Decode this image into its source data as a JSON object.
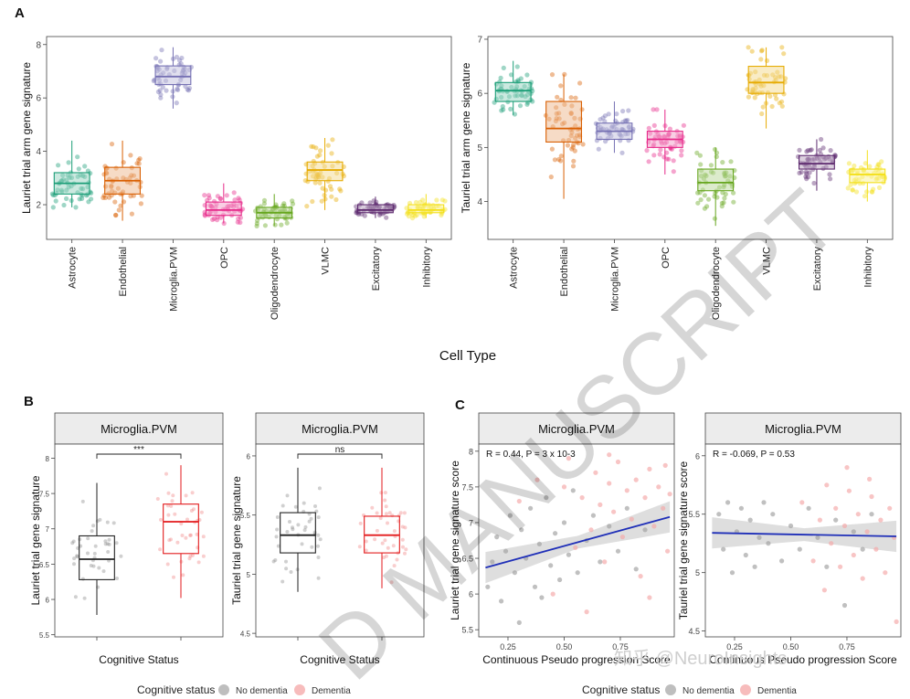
{
  "figure": {
    "panel_letters": [
      "A",
      "B",
      "C"
    ],
    "panel_a_xlabel": "Cell Type",
    "legend": {
      "title": "Cognitive status",
      "items": [
        {
          "label": "No dementia",
          "color": "#a8a8a8"
        },
        {
          "label": "Dementia",
          "color": "#f4a6a6"
        }
      ]
    },
    "watermarks": {
      "diagonal": "D MANUSCRIPT",
      "brand": "知乎 @NeuroInsights"
    }
  },
  "chart_data": [
    {
      "id": "A-left",
      "type": "box",
      "ylabel": "Lauriet trial arm gene signature",
      "ylim": [
        0.7,
        8.3
      ],
      "yticks": [
        2,
        4,
        6,
        8
      ],
      "categories": [
        "Astrocyte",
        "Endothelial",
        "Microglia.PVM",
        "OPC",
        "Oligodendrocyte",
        "VLMC",
        "Excitatory",
        "Inhibitory"
      ],
      "colors": [
        "#1b9e77",
        "#d95f02",
        "#7570b3",
        "#e7298a",
        "#66a61e",
        "#e6ab02",
        "#5e2a6f",
        "#f4e01a"
      ],
      "boxes": [
        {
          "q1": 2.4,
          "median": 2.8,
          "q3": 3.2,
          "min": 1.9,
          "max": 4.4
        },
        {
          "q1": 2.4,
          "median": 2.9,
          "q3": 3.4,
          "min": 1.4,
          "max": 4.4
        },
        {
          "q1": 6.5,
          "median": 6.8,
          "q3": 7.2,
          "min": 5.6,
          "max": 7.9
        },
        {
          "q1": 1.6,
          "median": 1.8,
          "q3": 2.1,
          "min": 1.3,
          "max": 2.8
        },
        {
          "q1": 1.5,
          "median": 1.7,
          "q3": 1.9,
          "min": 1.2,
          "max": 2.4
        },
        {
          "q1": 2.9,
          "median": 3.3,
          "q3": 3.6,
          "min": 1.8,
          "max": 4.5
        },
        {
          "q1": 1.7,
          "median": 1.8,
          "q3": 2.0,
          "min": 1.5,
          "max": 2.3
        },
        {
          "q1": 1.7,
          "median": 1.8,
          "q3": 2.0,
          "min": 1.5,
          "max": 2.4
        }
      ]
    },
    {
      "id": "A-right",
      "type": "box",
      "ylabel": "Tauriel trial arm gene signature",
      "ylim": [
        3.3,
        7.05
      ],
      "yticks": [
        4,
        5,
        6,
        7
      ],
      "categories": [
        "Astrocyte",
        "Endothelial",
        "Microglia.PVM",
        "OPC",
        "Oligodendrocyte",
        "VLMC",
        "Excitatory",
        "Inhibitory"
      ],
      "colors": [
        "#1b9e77",
        "#d95f02",
        "#7570b3",
        "#e7298a",
        "#66a61e",
        "#e6ab02",
        "#5e2a6f",
        "#f4e01a"
      ],
      "boxes": [
        {
          "q1": 5.85,
          "median": 6.05,
          "q3": 6.2,
          "min": 5.6,
          "max": 6.6
        },
        {
          "q1": 5.1,
          "median": 5.35,
          "q3": 5.85,
          "min": 4.05,
          "max": 6.35
        },
        {
          "q1": 5.15,
          "median": 5.3,
          "q3": 5.45,
          "min": 4.9,
          "max": 5.85
        },
        {
          "q1": 5.0,
          "median": 5.15,
          "q3": 5.3,
          "min": 4.5,
          "max": 5.7
        },
        {
          "q1": 4.2,
          "median": 4.35,
          "q3": 4.6,
          "min": 3.55,
          "max": 5.0
        },
        {
          "q1": 6.0,
          "median": 6.2,
          "q3": 6.5,
          "min": 5.35,
          "max": 6.85
        },
        {
          "q1": 4.6,
          "median": 4.7,
          "q3": 4.85,
          "min": 4.2,
          "max": 5.15
        },
        {
          "q1": 4.35,
          "median": 4.5,
          "q3": 4.6,
          "min": 4.0,
          "max": 4.95
        }
      ]
    },
    {
      "id": "B-left",
      "type": "box",
      "facet": "Microglia.PVM",
      "xlabel": "Cognitive Status",
      "ylabel": "Lauriet trial gene signature",
      "ylim": [
        5.47,
        8.2
      ],
      "yticks": [
        5.5,
        6.0,
        6.5,
        7.0,
        7.5,
        8.0
      ],
      "significance": "***",
      "categories": [
        "No dementia",
        "Dementia"
      ],
      "colors": [
        "#222222",
        "#e31a1c"
      ],
      "boxes": [
        {
          "q1": 6.28,
          "median": 6.57,
          "q3": 6.9,
          "min": 5.78,
          "max": 7.65
        },
        {
          "q1": 6.65,
          "median": 7.1,
          "q3": 7.35,
          "min": 6.02,
          "max": 7.9
        }
      ]
    },
    {
      "id": "B-right",
      "type": "box",
      "facet": "Microglia.PVM",
      "xlabel": "Cognitive Status",
      "ylabel": "Tauriel trial gene signature",
      "ylim": [
        4.47,
        6.1
      ],
      "yticks": [
        4.5,
        5.0,
        5.5,
        6.0
      ],
      "significance": "ns",
      "categories": [
        "No dementia",
        "Dementia"
      ],
      "colors": [
        "#222222",
        "#e31a1c"
      ],
      "boxes": [
        {
          "q1": 5.18,
          "median": 5.33,
          "q3": 5.52,
          "min": 4.85,
          "max": 5.9
        },
        {
          "q1": 5.18,
          "median": 5.33,
          "q3": 5.49,
          "min": 4.88,
          "max": 5.9
        }
      ]
    },
    {
      "id": "C-left",
      "type": "scatter",
      "facet": "Microglia.PVM",
      "xlabel": "Continuous Pseudo progression Score",
      "ylabel": "Lauriet trial gene signature score",
      "xlim": [
        0.12,
        0.99
      ],
      "ylim": [
        5.4,
        8.1
      ],
      "xticks": [
        0.25,
        0.5,
        0.75
      ],
      "yticks": [
        5.5,
        6.0,
        6.5,
        7.0,
        7.5,
        8.0
      ],
      "annotation": "R = 0.44, P = 3 x 10-3",
      "fit": {
        "x": [
          0.15,
          0.97
        ],
        "y": [
          6.37,
          7.08
        ]
      },
      "points": [
        [
          0.16,
          6.1,
          0
        ],
        [
          0.18,
          6.45,
          0
        ],
        [
          0.2,
          6.8,
          0
        ],
        [
          0.22,
          5.9,
          0
        ],
        [
          0.24,
          6.6,
          0
        ],
        [
          0.26,
          7.1,
          0
        ],
        [
          0.28,
          6.3,
          0
        ],
        [
          0.3,
          5.6,
          0
        ],
        [
          0.31,
          6.9,
          0
        ],
        [
          0.33,
          6.5,
          0
        ],
        [
          0.35,
          7.2,
          0
        ],
        [
          0.37,
          6.1,
          0
        ],
        [
          0.39,
          6.7,
          0
        ],
        [
          0.4,
          5.95,
          0
        ],
        [
          0.42,
          7.35,
          0
        ],
        [
          0.44,
          6.4,
          0
        ],
        [
          0.46,
          6.85,
          0
        ],
        [
          0.48,
          6.2,
          0
        ],
        [
          0.5,
          7.0,
          0
        ],
        [
          0.52,
          6.55,
          0
        ],
        [
          0.54,
          7.45,
          0
        ],
        [
          0.56,
          6.3,
          0
        ],
        [
          0.6,
          6.75,
          0
        ],
        [
          0.63,
          7.1,
          0
        ],
        [
          0.66,
          6.45,
          0
        ],
        [
          0.7,
          6.95,
          0
        ],
        [
          0.74,
          6.6,
          0
        ],
        [
          0.78,
          7.2,
          0
        ],
        [
          0.82,
          6.35,
          0
        ],
        [
          0.86,
          6.9,
          0
        ],
        [
          0.3,
          7.3,
          1
        ],
        [
          0.38,
          7.6,
          1
        ],
        [
          0.45,
          6.0,
          1
        ],
        [
          0.5,
          7.5,
          1
        ],
        [
          0.55,
          6.65,
          1
        ],
        [
          0.58,
          7.35,
          1
        ],
        [
          0.62,
          6.9,
          1
        ],
        [
          0.64,
          7.7,
          1
        ],
        [
          0.66,
          7.25,
          1
        ],
        [
          0.68,
          6.45,
          1
        ],
        [
          0.7,
          7.55,
          1
        ],
        [
          0.72,
          7.15,
          1
        ],
        [
          0.74,
          7.85,
          1
        ],
        [
          0.76,
          6.8,
          1
        ],
        [
          0.78,
          7.45,
          1
        ],
        [
          0.8,
          7.05,
          1
        ],
        [
          0.82,
          7.6,
          1
        ],
        [
          0.84,
          6.25,
          1
        ],
        [
          0.86,
          7.35,
          1
        ],
        [
          0.88,
          7.75,
          1
        ],
        [
          0.9,
          6.95,
          1
        ],
        [
          0.92,
          7.5,
          1
        ],
        [
          0.94,
          7.2,
          1
        ],
        [
          0.95,
          7.8,
          1
        ],
        [
          0.96,
          6.6,
          1
        ],
        [
          0.97,
          7.4,
          1
        ],
        [
          0.6,
          5.75,
          1
        ],
        [
          0.88,
          5.95,
          1
        ],
        [
          0.52,
          7.9,
          1
        ],
        [
          0.7,
          7.95,
          1
        ]
      ]
    },
    {
      "id": "C-right",
      "type": "scatter",
      "facet": "Microglia.PVM",
      "xlabel": "Continuous Pseudo progression Score",
      "ylabel": "Tauriel trial gene signature score",
      "xlim": [
        0.12,
        0.99
      ],
      "ylim": [
        4.45,
        6.1
      ],
      "xticks": [
        0.25,
        0.5,
        0.75
      ],
      "yticks": [
        4.5,
        5.0,
        5.5,
        6.0
      ],
      "annotation": "R = -0.069, P = 0.53",
      "fit": {
        "x": [
          0.15,
          0.97
        ],
        "y": [
          5.34,
          5.31
        ]
      },
      "points": [
        [
          0.18,
          5.5,
          0
        ],
        [
          0.2,
          5.2,
          0
        ],
        [
          0.22,
          5.6,
          0
        ],
        [
          0.24,
          5.0,
          0
        ],
        [
          0.26,
          5.35,
          0
        ],
        [
          0.28,
          5.55,
          0
        ],
        [
          0.3,
          5.15,
          0
        ],
        [
          0.32,
          5.45,
          0
        ],
        [
          0.34,
          5.05,
          0
        ],
        [
          0.36,
          5.3,
          0
        ],
        [
          0.38,
          5.6,
          0
        ],
        [
          0.4,
          5.25,
          0
        ],
        [
          0.42,
          5.5,
          0
        ],
        [
          0.46,
          5.1,
          0
        ],
        [
          0.5,
          5.4,
          0
        ],
        [
          0.54,
          5.2,
          0
        ],
        [
          0.58,
          5.55,
          0
        ],
        [
          0.62,
          5.3,
          0
        ],
        [
          0.66,
          5.05,
          0
        ],
        [
          0.7,
          5.45,
          0
        ],
        [
          0.74,
          4.72,
          0
        ],
        [
          0.78,
          5.35,
          0
        ],
        [
          0.82,
          5.2,
          0
        ],
        [
          0.86,
          5.5,
          0
        ],
        [
          0.55,
          5.6,
          1
        ],
        [
          0.6,
          5.1,
          1
        ],
        [
          0.63,
          5.45,
          1
        ],
        [
          0.66,
          5.75,
          1
        ],
        [
          0.68,
          5.25,
          1
        ],
        [
          0.7,
          5.55,
          1
        ],
        [
          0.72,
          5.05,
          1
        ],
        [
          0.74,
          5.4,
          1
        ],
        [
          0.76,
          5.7,
          1
        ],
        [
          0.78,
          5.15,
          1
        ],
        [
          0.8,
          5.5,
          1
        ],
        [
          0.82,
          4.95,
          1
        ],
        [
          0.84,
          5.35,
          1
        ],
        [
          0.86,
          5.65,
          1
        ],
        [
          0.88,
          5.2,
          1
        ],
        [
          0.9,
          5.45,
          1
        ],
        [
          0.92,
          5.0,
          1
        ],
        [
          0.94,
          5.55,
          1
        ],
        [
          0.96,
          5.3,
          1
        ],
        [
          0.97,
          4.58,
          1
        ],
        [
          0.75,
          5.9,
          1
        ],
        [
          0.65,
          4.85,
          1
        ],
        [
          0.85,
          5.8,
          1
        ]
      ]
    }
  ]
}
